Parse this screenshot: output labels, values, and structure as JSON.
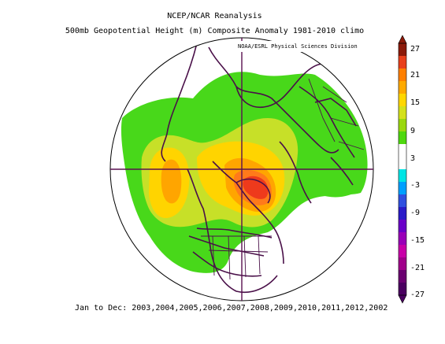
{
  "header": {
    "line1": "NCEP/NCAR Reanalysis",
    "line2": "500mb Geopotential Height (m) Composite Anomaly 1981-2010 climo",
    "credit": "NOAA/ESRL Physical Sciences Division"
  },
  "footer": {
    "period": "Jan to Dec: 2003,2004,2005,2006,2007,2008,2009,2010,2011,2012,2002"
  },
  "colorbar": {
    "labels": [
      "27",
      "21",
      "15",
      "9",
      "3",
      "-3",
      "-9",
      "-15",
      "-21",
      "-27"
    ],
    "colors": [
      "#8b1a0a",
      "#e8401c",
      "#ff7f00",
      "#ffaa00",
      "#ffd700",
      "#d4e11b",
      "#9ad80f",
      "#4ed80f",
      "#ffffff",
      "#ffffff",
      "#00e5e5",
      "#00a0ff",
      "#3050e0",
      "#2a1bc8",
      "#6a00c8",
      "#9a00b8",
      "#c800a8",
      "#a0008a",
      "#6a0070",
      "#4a0060"
    ]
  },
  "map": {
    "projection": "north-polar-stereographic",
    "anomaly_colors": {
      "green": "#48d81a",
      "lime": "#c7e028",
      "yellow": "#ffd400",
      "orange": "#ffa500",
      "dark_orange": "#ff7a1a",
      "red": "#ee3a1c",
      "coast": "#4a1049"
    }
  }
}
